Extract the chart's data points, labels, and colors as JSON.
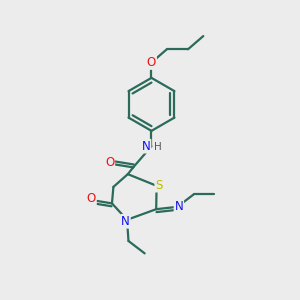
{
  "background_color": "#ececec",
  "bond_color": "#2a6b5a",
  "atom_colors": {
    "O": "#ee1111",
    "N": "#1111ee",
    "S": "#bbbb00",
    "H": "#555555",
    "C": "#2a6b5a"
  }
}
